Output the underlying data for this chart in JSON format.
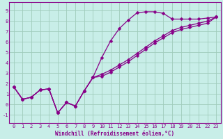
{
  "xlabel": "Windchill (Refroidissement éolien,°C)",
  "background_color": "#c8eee8",
  "grid_color": "#a0ccbb",
  "line_color": "#880088",
  "spine_color": "#880088",
  "xlim": [
    -0.5,
    23.5
  ],
  "ylim": [
    -1.8,
    9.8
  ],
  "xticks": [
    0,
    1,
    2,
    3,
    4,
    5,
    6,
    7,
    8,
    9,
    10,
    11,
    12,
    13,
    14,
    15,
    16,
    17,
    18,
    19,
    20,
    21,
    22,
    23
  ],
  "yticks": [
    -1,
    0,
    1,
    2,
    3,
    4,
    5,
    6,
    7,
    8,
    9
  ],
  "line1_x": [
    0,
    1,
    2,
    3,
    4,
    5,
    6,
    7,
    8,
    9,
    10,
    11,
    12,
    13,
    14,
    15,
    16,
    17,
    18,
    19,
    20,
    21,
    22,
    23
  ],
  "line1_y": [
    1.7,
    0.5,
    0.7,
    1.4,
    1.5,
    -0.8,
    0.2,
    -0.15,
    1.3,
    2.6,
    4.5,
    6.1,
    7.3,
    8.1,
    8.8,
    8.9,
    8.9,
    8.75,
    8.2,
    8.2,
    8.2,
    8.2,
    8.3,
    8.4
  ],
  "line2_x": [
    0,
    1,
    2,
    3,
    4,
    5,
    6,
    7,
    8,
    9,
    10,
    11,
    12,
    13,
    14,
    15,
    16,
    17,
    18,
    19,
    20,
    21,
    22,
    23
  ],
  "line2_y": [
    1.7,
    0.5,
    0.7,
    1.4,
    1.5,
    -0.8,
    0.2,
    -0.15,
    1.3,
    2.6,
    2.9,
    3.3,
    3.8,
    4.3,
    4.9,
    5.5,
    6.1,
    6.6,
    7.1,
    7.4,
    7.6,
    7.8,
    8.0,
    8.4
  ],
  "line3_x": [
    0,
    1,
    2,
    3,
    4,
    5,
    6,
    7,
    8,
    9,
    10,
    11,
    12,
    13,
    14,
    15,
    16,
    17,
    18,
    19,
    20,
    21,
    22,
    23
  ],
  "line3_y": [
    1.7,
    0.5,
    0.7,
    1.4,
    1.5,
    -0.8,
    0.2,
    -0.15,
    1.3,
    2.6,
    2.7,
    3.1,
    3.6,
    4.1,
    4.7,
    5.3,
    5.9,
    6.4,
    6.9,
    7.2,
    7.4,
    7.6,
    7.8,
    8.4
  ],
  "markersize": 2.5,
  "linewidth": 0.9,
  "tick_fontsize": 5.0,
  "xlabel_fontsize": 5.5
}
